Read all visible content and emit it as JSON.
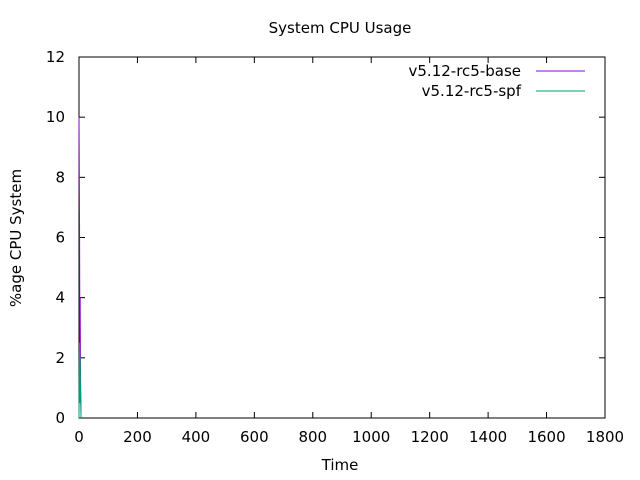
{
  "chart_data": {
    "type": "line",
    "title": "System CPU Usage",
    "xlabel": "Time",
    "ylabel": "%age CPU System",
    "xlim": [
      0,
      1800
    ],
    "ylim": [
      0,
      12
    ],
    "xticks": [
      0,
      200,
      400,
      600,
      800,
      1000,
      1200,
      1400,
      1600,
      1800
    ],
    "yticks": [
      0,
      2,
      4,
      6,
      8,
      10,
      12
    ],
    "xtick_labels": [
      "0",
      "200",
      "400",
      "600",
      "800",
      "1000",
      "1200",
      "1400",
      "1600",
      "1800"
    ],
    "ytick_labels": [
      "0",
      "2",
      "4",
      "6",
      "8",
      "10",
      "12"
    ],
    "grid": false,
    "legend_position": "top-right",
    "series": [
      {
        "name": "v5.12-rc5-base",
        "color": "#9400d3",
        "x": [
          0,
          1,
          2,
          3,
          4,
          5,
          6,
          7
        ],
        "y": [
          10,
          8,
          6,
          2,
          4,
          1.5,
          0.8,
          0
        ]
      },
      {
        "name": "v5.12-rc5-spf",
        "color": "#009e73",
        "x": [
          0,
          1,
          2,
          3,
          4,
          5,
          6,
          7
        ],
        "y": [
          0,
          1.5,
          2.5,
          0.5,
          2,
          1,
          0.5,
          0
        ]
      }
    ]
  }
}
